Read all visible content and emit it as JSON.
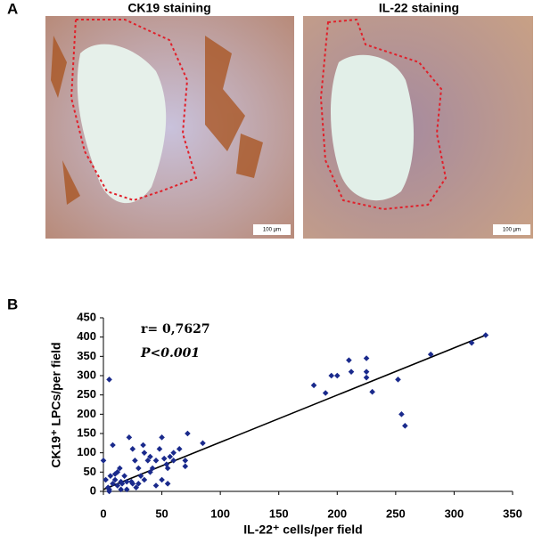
{
  "panel_labels": [
    "A",
    "B"
  ],
  "images": [
    {
      "title": "CK19 staining",
      "scale_bar": "100 µm"
    },
    {
      "title": "IL-22 staining",
      "scale_bar": "100 µm"
    }
  ],
  "chart_data": {
    "type": "scatter",
    "xlabel": "IL-22⁺ cells/per field",
    "ylabel": "CK19⁺ LPCs/per field",
    "annotations": [
      "r= 0,7627",
      "P<0.001"
    ],
    "xlim": [
      0,
      350
    ],
    "ylim": [
      0,
      450
    ],
    "xticks": [
      0,
      50,
      100,
      150,
      200,
      250,
      300,
      350
    ],
    "yticks": [
      0,
      50,
      100,
      150,
      200,
      250,
      300,
      350,
      400,
      450
    ],
    "series": [
      {
        "color": "#1a2a8c",
        "x": [
          5,
          0,
          2,
          4,
          5,
          6,
          8,
          8,
          10,
          12,
          12,
          14,
          15,
          16,
          18,
          20,
          20,
          22,
          24,
          25,
          27,
          28,
          30,
          30,
          32,
          34,
          35,
          38,
          40,
          40,
          42,
          45,
          48,
          50,
          50,
          52,
          54,
          55,
          57,
          60,
          60,
          65,
          70,
          70,
          72,
          85,
          55,
          45,
          25,
          15,
          5,
          35,
          10,
          180,
          190,
          195,
          200,
          210,
          212,
          225,
          225,
          225,
          230,
          252,
          255,
          258,
          280,
          315,
          327
        ],
        "values": [
          290,
          80,
          30,
          10,
          0,
          40,
          20,
          120,
          30,
          15,
          50,
          60,
          25,
          20,
          40,
          5,
          25,
          140,
          25,
          110,
          80,
          10,
          20,
          60,
          40,
          120,
          30,
          80,
          90,
          50,
          60,
          80,
          110,
          140,
          30,
          85,
          70,
          20,
          90,
          100,
          80,
          110,
          65,
          80,
          150,
          125,
          60,
          15,
          20,
          5,
          5,
          100,
          45,
          275,
          255,
          300,
          300,
          340,
          310,
          345,
          310,
          295,
          258,
          290,
          200,
          170,
          355,
          385,
          405
        ]
      }
    ],
    "trendline": {
      "x": [
        0,
        327
      ],
      "values": [
        5,
        405
      ]
    }
  }
}
